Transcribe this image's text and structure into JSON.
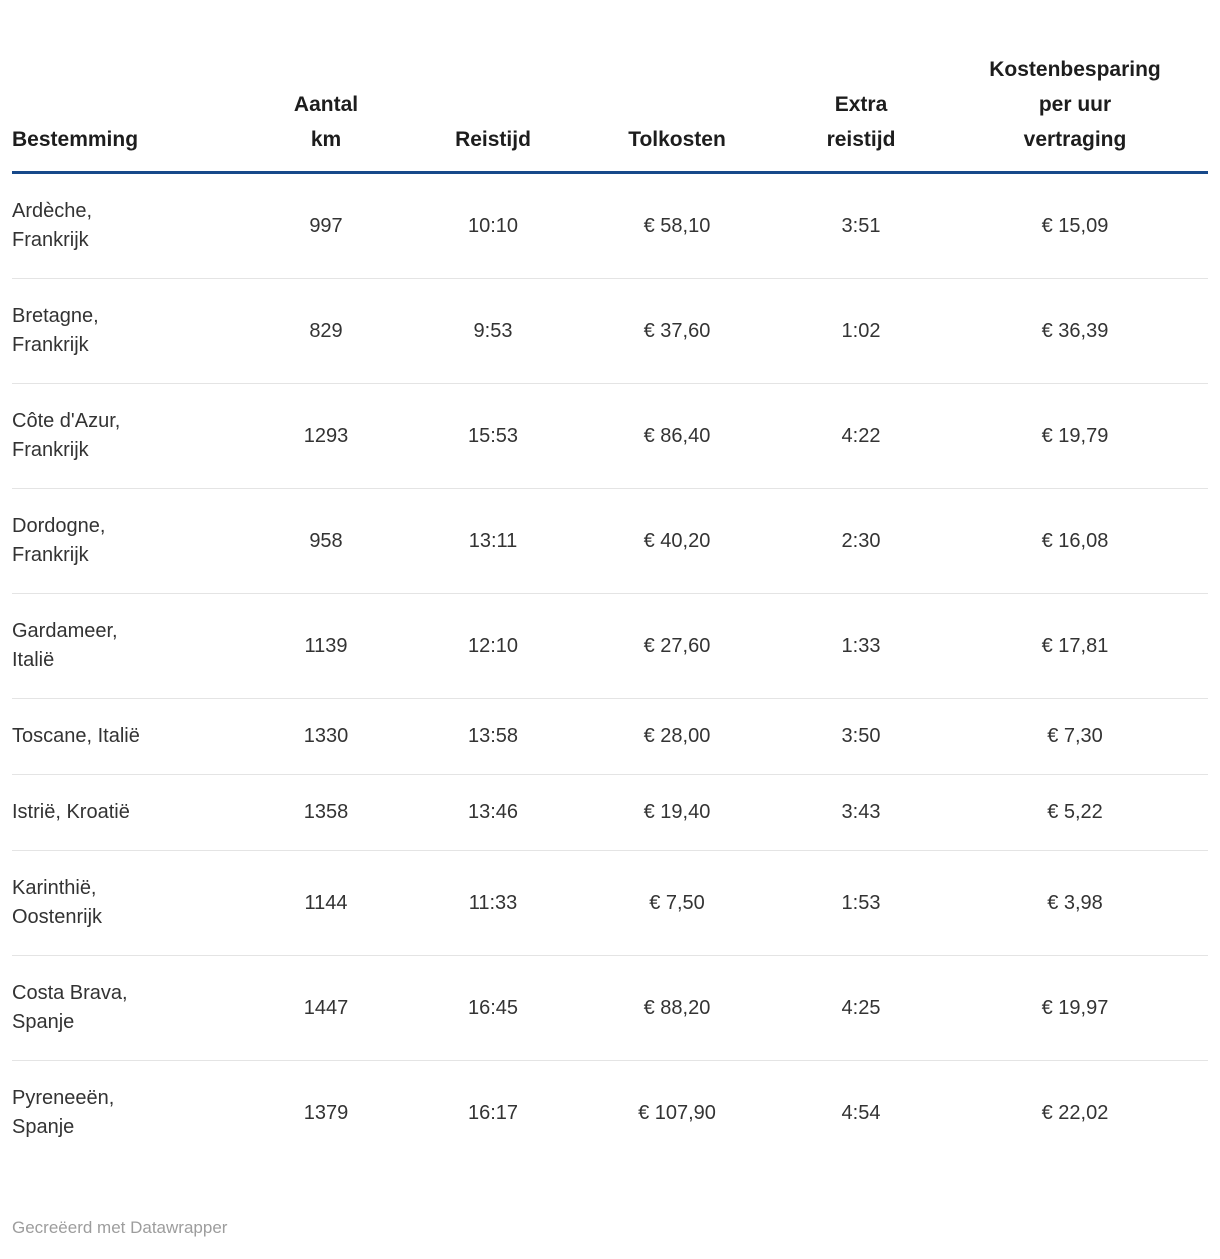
{
  "chart_data": {
    "type": "table",
    "columns": [
      {
        "key": "bestemming",
        "label": "Bestemming",
        "display": "Bestemming",
        "align": "left"
      },
      {
        "key": "aantal_km",
        "label": "Aantal km",
        "display": "Aantal\nkm",
        "align": "center"
      },
      {
        "key": "reistijd",
        "label": "Reistijd",
        "display": "Reistijd",
        "align": "center"
      },
      {
        "key": "tolkosten",
        "label": "Tolkosten",
        "display": "Tolkosten",
        "align": "center"
      },
      {
        "key": "extra_reistijd",
        "label": "Extra reistijd",
        "display": "Extra\nreistijd",
        "align": "center"
      },
      {
        "key": "kostenbesparing",
        "label": "Kostenbesparing per uur vertraging",
        "display": "Kostenbesparing\nper uur\nvertraging",
        "align": "center"
      }
    ],
    "rows": [
      {
        "bestemming": "Ardèche,\nFrankrijk",
        "aantal_km": "997",
        "reistijd": "10:10",
        "tolkosten": "€ 58,10",
        "extra_reistijd": "3:51",
        "kostenbesparing": "€ 15,09"
      },
      {
        "bestemming": "Bretagne,\nFrankrijk",
        "aantal_km": "829",
        "reistijd": "9:53",
        "tolkosten": "€ 37,60",
        "extra_reistijd": "1:02",
        "kostenbesparing": "€ 36,39"
      },
      {
        "bestemming": "Côte d'Azur,\nFrankrijk",
        "aantal_km": "1293",
        "reistijd": "15:53",
        "tolkosten": "€ 86,40",
        "extra_reistijd": "4:22",
        "kostenbesparing": "€ 19,79"
      },
      {
        "bestemming": "Dordogne,\nFrankrijk",
        "aantal_km": "958",
        "reistijd": "13:11",
        "tolkosten": "€ 40,20",
        "extra_reistijd": "2:30",
        "kostenbesparing": "€ 16,08"
      },
      {
        "bestemming": "Gardameer,\nItalië",
        "aantal_km": "1139",
        "reistijd": "12:10",
        "tolkosten": "€ 27,60",
        "extra_reistijd": "1:33",
        "kostenbesparing": "€ 17,81"
      },
      {
        "bestemming": "Toscane, Italië",
        "aantal_km": "1330",
        "reistijd": "13:58",
        "tolkosten": "€ 28,00",
        "extra_reistijd": "3:50",
        "kostenbesparing": "€ 7,30"
      },
      {
        "bestemming": "Istrië, Kroatië",
        "aantal_km": "1358",
        "reistijd": "13:46",
        "tolkosten": "€ 19,40",
        "extra_reistijd": "3:43",
        "kostenbesparing": "€ 5,22"
      },
      {
        "bestemming": "Karinthië,\nOostenrijk",
        "aantal_km": "1144",
        "reistijd": "11:33",
        "tolkosten": "€ 7,50",
        "extra_reistijd": "1:53",
        "kostenbesparing": "€ 3,98"
      },
      {
        "bestemming": "Costa Brava,\nSpanje",
        "aantal_km": "1447",
        "reistijd": "16:45",
        "tolkosten": "€ 88,20",
        "extra_reistijd": "4:25",
        "kostenbesparing": "€ 19,97"
      },
      {
        "bestemming": "Pyreneeën,\nSpanje",
        "aantal_km": "1379",
        "reistijd": "16:17",
        "tolkosten": "€ 107,90",
        "extra_reistijd": "4:54",
        "kostenbesparing": "€ 22,02"
      }
    ]
  },
  "colors": {
    "header_rule": "#17498a",
    "row_divider": "#e4e4e4",
    "header_text": "#1d1d1d",
    "body_text": "#333333",
    "footer_text": "#9d9d9d",
    "background": "#ffffff"
  },
  "footer": {
    "credit": "Gecreëerd met Datawrapper"
  }
}
